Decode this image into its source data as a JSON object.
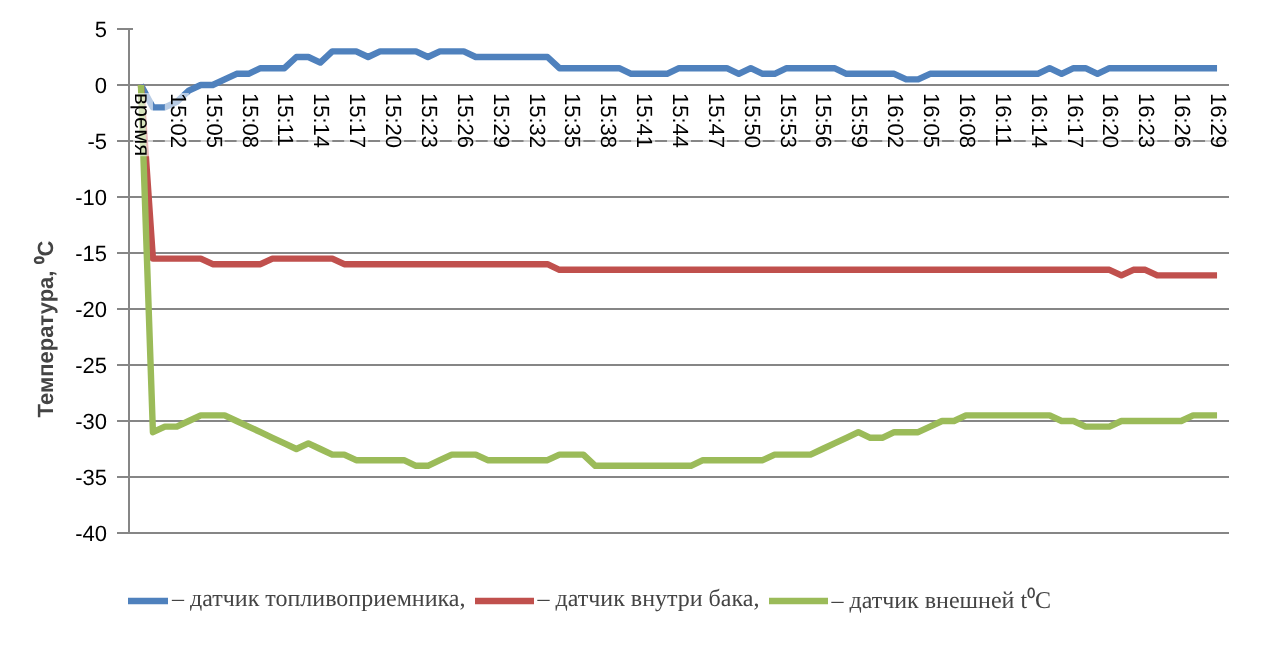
{
  "chart_data": {
    "type": "line",
    "ylabel": "Температура, ⁰C",
    "categories": [
      "время",
      null,
      null,
      "15:02",
      null,
      null,
      "15:05",
      null,
      null,
      "15:08",
      null,
      null,
      "15:11",
      null,
      null,
      "15:14",
      null,
      null,
      "15:17",
      null,
      null,
      "15:20",
      null,
      null,
      "15:23",
      null,
      null,
      "15:26",
      null,
      null,
      "15:29",
      null,
      null,
      "15:32",
      null,
      null,
      "15:35",
      null,
      null,
      "15:38",
      null,
      null,
      "15:41",
      null,
      null,
      "15:44",
      null,
      null,
      "15:47",
      null,
      null,
      "15:50",
      null,
      null,
      "15:53",
      null,
      null,
      "15:56",
      null,
      null,
      "15:59",
      null,
      null,
      "16:02",
      null,
      null,
      "16:05",
      null,
      null,
      "16:08",
      null,
      null,
      "16:11",
      null,
      null,
      "16:14",
      null,
      null,
      "16:17",
      null,
      null,
      "16:20",
      null,
      null,
      "16:23",
      null,
      null,
      "16:26",
      null,
      null,
      "16:29"
    ],
    "series": [
      {
        "name": "– датчик топливоприемника,",
        "color": "#4f81bd",
        "values": [
          0,
          -2,
          -2,
          -1.5,
          -0.5,
          0,
          0,
          0.5,
          1,
          1,
          1.5,
          1.5,
          1.5,
          2.5,
          2.5,
          2,
          3,
          3,
          3,
          2.5,
          3,
          3,
          3,
          3,
          2.5,
          3,
          3,
          3,
          2.5,
          2.5,
          2.5,
          2.5,
          2.5,
          2.5,
          2.5,
          1.5,
          1.5,
          1.5,
          1.5,
          1.5,
          1.5,
          1,
          1,
          1,
          1,
          1.5,
          1.5,
          1.5,
          1.5,
          1.5,
          1,
          1.5,
          1,
          1,
          1.5,
          1.5,
          1.5,
          1.5,
          1.5,
          1,
          1,
          1,
          1,
          1,
          0.5,
          0.5,
          1,
          1,
          1,
          1,
          1,
          1,
          1,
          1,
          1,
          1,
          1.5,
          1,
          1.5,
          1.5,
          1,
          1.5,
          1.5,
          1.5,
          1.5,
          1.5,
          1.5,
          1.5,
          1.5,
          1.5,
          1.5
        ]
      },
      {
        "name": "– датчик внутри бака,",
        "color": "#c0504d",
        "values": [
          0,
          -15.5,
          -15.5,
          -15.5,
          -15.5,
          -15.5,
          -16,
          -16,
          -16,
          -16,
          -16,
          -15.5,
          -15.5,
          -15.5,
          -15.5,
          -15.5,
          -15.5,
          -16,
          -16,
          -16,
          -16,
          -16,
          -16,
          -16,
          -16,
          -16,
          -16,
          -16,
          -16,
          -16,
          -16,
          -16,
          -16,
          -16,
          -16,
          -16.5,
          -16.5,
          -16.5,
          -16.5,
          -16.5,
          -16.5,
          -16.5,
          -16.5,
          -16.5,
          -16.5,
          -16.5,
          -16.5,
          -16.5,
          -16.5,
          -16.5,
          -16.5,
          -16.5,
          -16.5,
          -16.5,
          -16.5,
          -16.5,
          -16.5,
          -16.5,
          -16.5,
          -16.5,
          -16.5,
          -16.5,
          -16.5,
          -16.5,
          -16.5,
          -16.5,
          -16.5,
          -16.5,
          -16.5,
          -16.5,
          -16.5,
          -16.5,
          -16.5,
          -16.5,
          -16.5,
          -16.5,
          -16.5,
          -16.5,
          -16.5,
          -16.5,
          -16.5,
          -16.5,
          -17,
          -16.5,
          -16.5,
          -17,
          -17,
          -17,
          -17,
          -17,
          -17
        ]
      },
      {
        "name": "– датчик внешней t⁰C",
        "color": "#9bbb59",
        "values": [
          0,
          -31,
          -30.5,
          -30.5,
          -30,
          -29.5,
          -29.5,
          -29.5,
          -30,
          -30.5,
          -31,
          -31.5,
          -32,
          -32.5,
          -32,
          -32.5,
          -33,
          -33,
          -33.5,
          -33.5,
          -33.5,
          -33.5,
          -33.5,
          -34,
          -34,
          -33.5,
          -33,
          -33,
          -33,
          -33.5,
          -33.5,
          -33.5,
          -33.5,
          -33.5,
          -33.5,
          -33,
          -33,
          -33,
          -34,
          -34,
          -34,
          -34,
          -34,
          -34,
          -34,
          -34,
          -34,
          -33.5,
          -33.5,
          -33.5,
          -33.5,
          -33.5,
          -33.5,
          -33,
          -33,
          -33,
          -33,
          -32.5,
          -32,
          -31.5,
          -31,
          -31.5,
          -31.5,
          -31,
          -31,
          -31,
          -30.5,
          -30,
          -30,
          -29.5,
          -29.5,
          -29.5,
          -29.5,
          -29.5,
          -29.5,
          -29.5,
          -29.5,
          -30,
          -30,
          -30.5,
          -30.5,
          -30.5,
          -30,
          -30,
          -30,
          -30,
          -30,
          -30,
          -29.5,
          -29.5,
          -29.5
        ]
      }
    ],
    "ylim": [
      -40,
      5
    ],
    "yticks": [
      -40,
      -35,
      -30,
      -25,
      -20,
      -15,
      -10,
      -5,
      0,
      5
    ],
    "grid": "y",
    "legend": "bottom"
  }
}
